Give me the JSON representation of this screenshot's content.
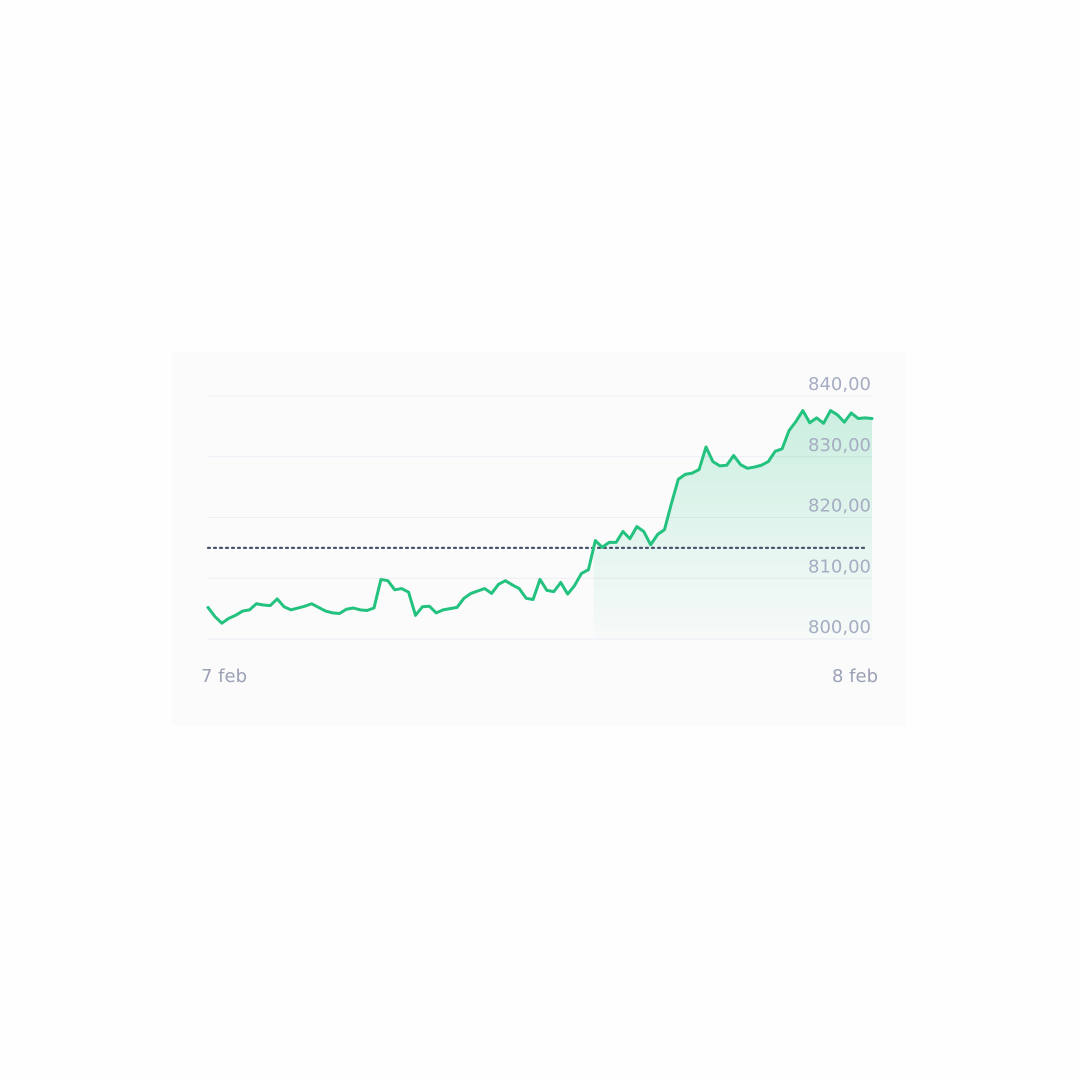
{
  "chart_data": {
    "type": "area",
    "x_labels": [
      "7 feb",
      "8 feb"
    ],
    "y_ticks": [
      "840,00",
      "830,00",
      "820,00",
      "810,00",
      "800,00"
    ],
    "ylim": [
      800,
      840
    ],
    "reference_value": 815,
    "grid": true,
    "colors": {
      "line": "#23c27f",
      "reference": "#4a5670",
      "grid": "#eceef3",
      "tick": "#a6adc2"
    },
    "series": [
      {
        "values": [
          805.2,
          803.7,
          802.6,
          803.4,
          803.9,
          804.6,
          804.8,
          805.8,
          805.6,
          805.5,
          806.6,
          805.3,
          804.8,
          805.1,
          805.4,
          805.8,
          805.2,
          804.6,
          804.3,
          804.2,
          804.9,
          805.1,
          804.8,
          804.7,
          805.1,
          809.8,
          809.6,
          808.1,
          808.3,
          807.7,
          803.9,
          805.3,
          805.4,
          804.3,
          804.8,
          805.0,
          805.2,
          806.7,
          807.5,
          807.9,
          808.3,
          807.5,
          809.0,
          809.6,
          808.9,
          808.3,
          806.7,
          806.5,
          809.8,
          808.0,
          807.8,
          809.3,
          807.4,
          808.8,
          810.8,
          811.4,
          816.2,
          815.1,
          815.9,
          815.9,
          817.7,
          816.5,
          818.5,
          817.7,
          815.5,
          817.2,
          818.0,
          822.3,
          826.3,
          827.1,
          827.3,
          827.9,
          831.6,
          829.2,
          828.5,
          828.6,
          830.2,
          828.7,
          828.1,
          828.3,
          828.6,
          829.2,
          830.9,
          831.3,
          834.3,
          835.8,
          837.6,
          835.6,
          836.4,
          835.5,
          837.6,
          836.9,
          835.7,
          837.2,
          836.3,
          836.4,
          836.3
        ]
      }
    ]
  }
}
